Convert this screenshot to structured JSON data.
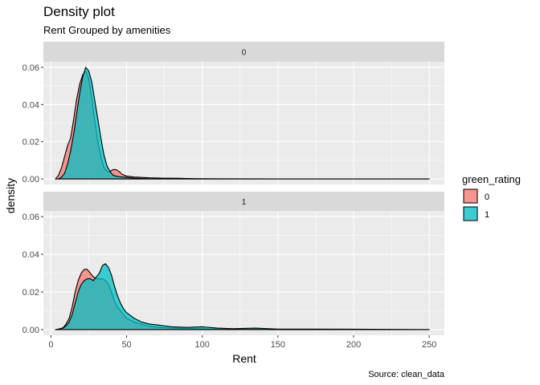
{
  "chart_data": {
    "type": "area",
    "title": "Density plot",
    "subtitle": "Rent Grouped by amenities",
    "xlabel": "Rent",
    "ylabel": "density",
    "caption": "Source: clean_data",
    "xlim": [
      -5,
      260
    ],
    "ylim": [
      -0.003,
      0.063
    ],
    "x_ticks": [
      0,
      50,
      100,
      150,
      200,
      250
    ],
    "y_ticks": [
      0.0,
      0.02,
      0.04,
      0.06
    ],
    "y_tick_labels": [
      "0.00",
      "0.02",
      "0.04",
      "0.06"
    ],
    "grid": true,
    "legend": {
      "title": "green_rating",
      "position": "right",
      "entries": [
        {
          "label": "0",
          "color": "#F8766D"
        },
        {
          "label": "1",
          "color": "#00BFC4"
        }
      ]
    },
    "panels": [
      {
        "strip": "0",
        "series": [
          {
            "fill_level": "0",
            "color": "#F8766D",
            "x": [
              3,
              5,
              7,
              9,
              11,
              13,
              15,
              17,
              19,
              21,
              23,
              25,
              27,
              29,
              31,
              33,
              35,
              37,
              39,
              41,
              43,
              45,
              47,
              50,
              55,
              60,
              65,
              70,
              75,
              80,
              85,
              90,
              100,
              120,
              150,
              200,
              250
            ],
            "y": [
              0.0,
              0.002,
              0.006,
              0.012,
              0.018,
              0.022,
              0.032,
              0.043,
              0.051,
              0.056,
              0.058,
              0.054,
              0.043,
              0.031,
              0.02,
              0.012,
              0.006,
              0.004,
              0.004,
              0.005,
              0.005,
              0.004,
              0.0025,
              0.0015,
              0.001,
              0.0008,
              0.0006,
              0.0005,
              0.0004,
              0.0004,
              0.0003,
              0.0002,
              0.0001,
              5e-05,
              2e-05,
              1e-05,
              0.0
            ]
          },
          {
            "fill_level": "1",
            "color": "#00BFC4",
            "x": [
              3,
              5,
              7,
              9,
              11,
              13,
              15,
              17,
              19,
              21,
              23,
              25,
              27,
              29,
              31,
              33,
              35,
              37,
              39,
              41,
              43,
              45,
              47,
              50,
              55,
              60,
              65,
              70,
              75,
              80,
              85,
              90,
              100,
              120,
              150,
              200,
              250
            ],
            "y": [
              0.0,
              0.0,
              0.001,
              0.003,
              0.008,
              0.015,
              0.024,
              0.035,
              0.046,
              0.055,
              0.06,
              0.058,
              0.052,
              0.042,
              0.032,
              0.022,
              0.013,
              0.007,
              0.004,
              0.002,
              0.0015,
              0.0012,
              0.001,
              0.0008,
              0.0004,
              0.0002,
              0.0001,
              5e-05,
              3e-05,
              2e-05,
              1e-05,
              0.0,
              0.0,
              0.0,
              0.0,
              0.0,
              0.0
            ]
          }
        ]
      },
      {
        "strip": "1",
        "series": [
          {
            "fill_level": "0",
            "color": "#F8766D",
            "x": [
              3,
              5,
              8,
              10,
              12,
              14,
              16,
              18,
              20,
              22,
              24,
              26,
              28,
              30,
              32,
              34,
              36,
              38,
              40,
              42,
              44,
              46,
              48,
              50,
              55,
              60,
              65,
              70,
              75,
              80,
              90,
              100,
              110,
              120,
              135,
              150,
              175,
              200,
              225,
              250
            ],
            "y": [
              0.0,
              0.0003,
              0.001,
              0.003,
              0.006,
              0.012,
              0.02,
              0.026,
              0.03,
              0.032,
              0.032,
              0.03,
              0.028,
              0.027,
              0.027,
              0.027,
              0.026,
              0.024,
              0.02,
              0.015,
              0.012,
              0.01,
              0.008,
              0.006,
              0.004,
              0.0028,
              0.0018,
              0.0013,
              0.001,
              0.0008,
              0.0006,
              0.0004,
              0.0003,
              0.0002,
              0.0002,
              0.0001,
              0.0001,
              5e-05,
              3e-05,
              0.0
            ]
          },
          {
            "fill_level": "1",
            "color": "#00BFC4",
            "x": [
              3,
              5,
              8,
              10,
              12,
              14,
              16,
              18,
              20,
              22,
              24,
              26,
              28,
              30,
              32,
              34,
              36,
              38,
              40,
              42,
              44,
              46,
              48,
              50,
              55,
              60,
              65,
              70,
              75,
              80,
              90,
              100,
              110,
              120,
              135,
              150,
              175,
              200,
              225,
              250
            ],
            "y": [
              0.0,
              0.0002,
              0.0008,
              0.002,
              0.004,
              0.008,
              0.014,
              0.02,
              0.024,
              0.026,
              0.027,
              0.027,
              0.026,
              0.028,
              0.03,
              0.034,
              0.035,
              0.033,
              0.029,
              0.023,
              0.018,
              0.014,
              0.011,
              0.009,
              0.006,
              0.004,
              0.003,
              0.0025,
              0.002,
              0.0015,
              0.0012,
              0.0015,
              0.0008,
              0.0005,
              0.0008,
              0.0003,
              0.0003,
              0.0002,
              0.0001,
              0.0
            ]
          }
        ]
      }
    ]
  }
}
